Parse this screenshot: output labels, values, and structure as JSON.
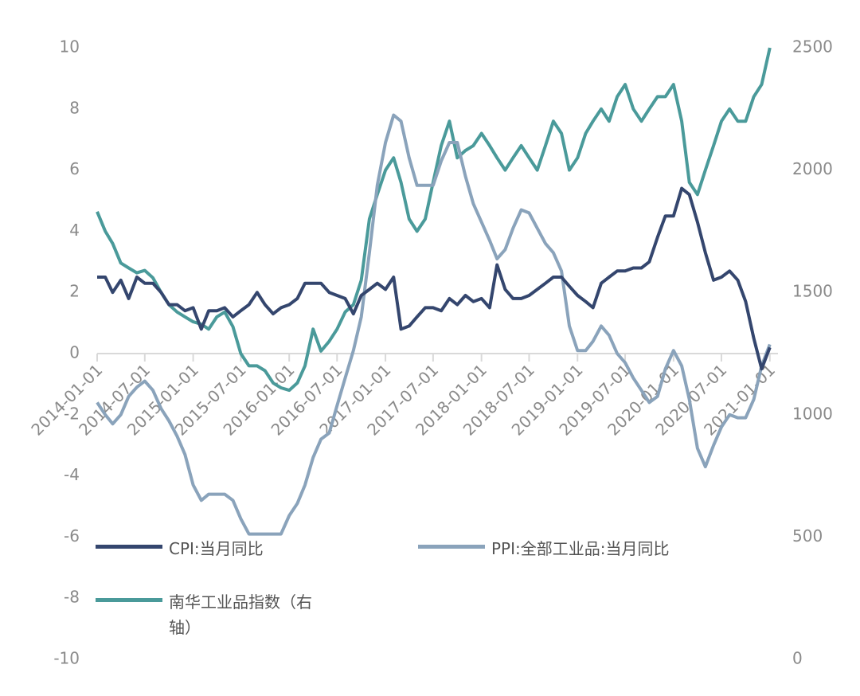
{
  "chart_data": {
    "type": "line",
    "x": [
      "2014-01-01",
      "2014-02-01",
      "2014-03-01",
      "2014-04-01",
      "2014-05-01",
      "2014-06-01",
      "2014-07-01",
      "2014-08-01",
      "2014-09-01",
      "2014-10-01",
      "2014-11-01",
      "2014-12-01",
      "2015-01-01",
      "2015-02-01",
      "2015-03-01",
      "2015-04-01",
      "2015-05-01",
      "2015-06-01",
      "2015-07-01",
      "2015-08-01",
      "2015-09-01",
      "2015-10-01",
      "2015-11-01",
      "2015-12-01",
      "2016-01-01",
      "2016-02-01",
      "2016-03-01",
      "2016-04-01",
      "2016-05-01",
      "2016-06-01",
      "2016-07-01",
      "2016-08-01",
      "2016-09-01",
      "2016-10-01",
      "2016-11-01",
      "2016-12-01",
      "2017-01-01",
      "2017-02-01",
      "2017-03-01",
      "2017-04-01",
      "2017-05-01",
      "2017-06-01",
      "2017-07-01",
      "2017-08-01",
      "2017-09-01",
      "2017-10-01",
      "2017-11-01",
      "2017-12-01",
      "2018-01-01",
      "2018-02-01",
      "2018-03-01",
      "2018-04-01",
      "2018-05-01",
      "2018-06-01",
      "2018-07-01",
      "2018-08-01",
      "2018-09-01",
      "2018-10-01",
      "2018-11-01",
      "2018-12-01",
      "2019-01-01",
      "2019-02-01",
      "2019-03-01",
      "2019-04-01",
      "2019-05-01",
      "2019-06-01",
      "2019-07-01",
      "2019-08-01",
      "2019-09-01",
      "2019-10-01",
      "2019-11-01",
      "2019-12-01",
      "2020-01-01",
      "2020-02-01",
      "2020-03-01",
      "2020-04-01",
      "2020-05-01",
      "2020-06-01",
      "2020-07-01",
      "2020-08-01",
      "2020-09-01",
      "2020-10-01",
      "2020-11-01",
      "2020-12-01",
      "2021-01-01"
    ],
    "xlim": [
      "2014-01-01",
      "2021-02-01"
    ],
    "xticks": [
      "2014-01-01",
      "2014-07-01",
      "2015-01-01",
      "2015-07-01",
      "2016-01-01",
      "2016-07-01",
      "2017-01-01",
      "2017-07-01",
      "2018-01-01",
      "2018-07-01",
      "2019-01-01",
      "2019-07-01",
      "2020-01-01",
      "2020-07-01",
      "2021-01-01"
    ],
    "ylim": [
      -10,
      10
    ],
    "yticks": [
      -10,
      -8,
      -6,
      -4,
      -2,
      0,
      2,
      4,
      6,
      8,
      10
    ],
    "y2lim": [
      0,
      2500
    ],
    "y2ticks": [
      0,
      500,
      1000,
      1500,
      2000,
      2500
    ],
    "series": [
      {
        "name": "CPI:当月同比",
        "color": "#34466e",
        "values": [
          2.5,
          2.5,
          2.0,
          2.4,
          1.8,
          2.5,
          2.3,
          2.3,
          2.0,
          1.6,
          1.6,
          1.4,
          1.5,
          0.8,
          1.4,
          1.4,
          1.5,
          1.2,
          1.4,
          1.6,
          2.0,
          1.6,
          1.3,
          1.5,
          1.6,
          1.8,
          2.3,
          2.3,
          2.3,
          2.0,
          1.9,
          1.8,
          1.3,
          1.9,
          2.1,
          2.3,
          2.1,
          2.5,
          0.8,
          0.9,
          1.2,
          1.5,
          1.5,
          1.4,
          1.8,
          1.6,
          1.9,
          1.7,
          1.8,
          1.5,
          2.9,
          2.1,
          1.8,
          1.8,
          1.9,
          2.1,
          2.3,
          2.5,
          2.5,
          2.2,
          1.9,
          1.7,
          1.5,
          2.3,
          2.5,
          2.7,
          2.7,
          2.8,
          2.8,
          3.0,
          3.8,
          4.5,
          4.5,
          5.4,
          5.2,
          4.3,
          3.3,
          2.4,
          2.5,
          2.7,
          2.4,
          1.7,
          0.5,
          -0.5,
          0.2
        ]
      },
      {
        "name": "PPI:全部工业品:当月同比",
        "color": "#8aa3bb",
        "values": [
          -1.6,
          -2.0,
          -2.3,
          -2.0,
          -1.4,
          -1.1,
          -0.9,
          -1.2,
          -1.8,
          -2.2,
          -2.7,
          -3.3,
          -4.3,
          -4.8,
          -4.6,
          -4.6,
          -4.6,
          -4.8,
          -5.4,
          -5.9,
          -5.9,
          -5.9,
          -5.9,
          -5.9,
          -5.3,
          -4.9,
          -4.3,
          -3.4,
          -2.8,
          -2.6,
          -1.7,
          -0.8,
          0.1,
          1.2,
          3.3,
          5.5,
          6.9,
          7.8,
          7.6,
          6.4,
          5.5,
          5.5,
          5.5,
          6.3,
          6.9,
          6.9,
          5.8,
          4.9,
          4.3,
          3.7,
          3.1,
          3.4,
          4.1,
          4.7,
          4.6,
          4.1,
          3.6,
          3.3,
          2.7,
          0.9,
          0.1,
          0.1,
          0.4,
          0.9,
          0.6,
          0.0,
          -0.3,
          -0.8,
          -1.2,
          -1.6,
          -1.4,
          -0.5,
          0.1,
          -0.4,
          -1.5,
          -3.1,
          -3.7,
          -3.0,
          -2.4,
          -2.0,
          -2.1,
          -2.1,
          -1.5,
          -0.4,
          0.3
        ]
      },
      {
        "name": "南华工业品指数（右轴）",
        "color": "#4a9a9a",
        "axis": "y2",
        "values": [
          1830,
          1750,
          1700,
          1620,
          1600,
          1580,
          1590,
          1560,
          1500,
          1450,
          1420,
          1400,
          1380,
          1370,
          1350,
          1400,
          1420,
          1360,
          1250,
          1200,
          1200,
          1180,
          1130,
          1110,
          1100,
          1130,
          1200,
          1350,
          1260,
          1300,
          1350,
          1420,
          1450,
          1550,
          1800,
          1900,
          2000,
          2050,
          1950,
          1800,
          1750,
          1800,
          1950,
          2100,
          2200,
          2050,
          2080,
          2100,
          2150,
          2100,
          2050,
          2000,
          2050,
          2100,
          2050,
          2000,
          2100,
          2200,
          2150,
          2000,
          2050,
          2150,
          2200,
          2250,
          2200,
          2300,
          2350,
          2250,
          2200,
          2250,
          2300,
          2300,
          2350,
          2200,
          1950,
          1900,
          2000,
          2100,
          2200,
          2250,
          2200,
          2200,
          2300,
          2350,
          2500
        ]
      }
    ]
  }
}
